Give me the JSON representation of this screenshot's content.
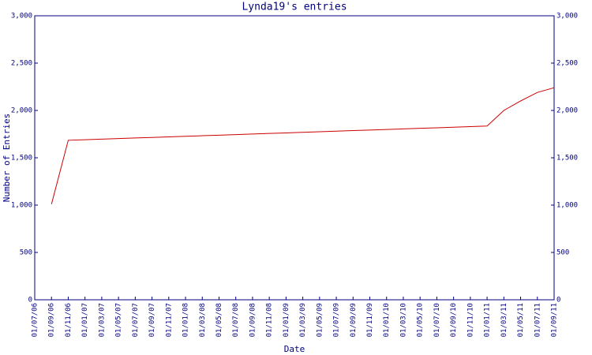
{
  "chart_data": {
    "type": "line",
    "title": "Lynda19's entries",
    "x_label": "Date",
    "y_label": "Number of Entries",
    "categories": [
      "01/07/06",
      "01/09/06",
      "01/11/06",
      "01/01/07",
      "01/03/07",
      "01/05/07",
      "01/07/07",
      "01/09/07",
      "01/11/07",
      "01/01/08",
      "01/03/08",
      "01/05/08",
      "01/07/08",
      "01/09/08",
      "01/11/08",
      "01/01/09",
      "01/03/09",
      "01/05/09",
      "01/07/09",
      "01/09/09",
      "01/11/09",
      "01/01/10",
      "01/03/10",
      "01/05/10",
      "01/07/10",
      "01/09/10",
      "01/11/10",
      "01/01/11",
      "01/03/11",
      "01/05/11",
      "01/07/11",
      "01/09/11"
    ],
    "values": [
      null,
      1010,
      1685,
      1691,
      1697,
      1703,
      1709,
      1715,
      1721,
      1727,
      1733,
      1739,
      1745,
      1751,
      1757,
      1763,
      1769,
      1775,
      1781,
      1787,
      1793,
      1799,
      1805,
      1811,
      1817,
      1823,
      1829,
      1835,
      2000,
      2100,
      2190,
      2240
    ],
    "color": "#cc0000",
    "ylim": [
      0,
      3000
    ],
    "yticks": [
      0,
      500,
      {
        "value": 1000,
        "label": "1,000"
      },
      {
        "value": 1500,
        "label": "1,500"
      },
      {
        "value": 2000,
        "label": "2,000"
      },
      {
        "value": 2500,
        "label": "2,500"
      },
      {
        "value": 3000,
        "label": "3,000"
      }
    ],
    "y2lim": [
      0,
      3000
    ],
    "y2ticks": [
      0,
      500,
      {
        "value": 1000,
        "label": "1,000"
      },
      {
        "value": 1500,
        "label": "1,500"
      },
      {
        "value": 2000,
        "label": "2,000"
      },
      {
        "value": 2500,
        "label": "2,500"
      },
      {
        "value": 3000,
        "label": "3,000"
      }
    ]
  }
}
